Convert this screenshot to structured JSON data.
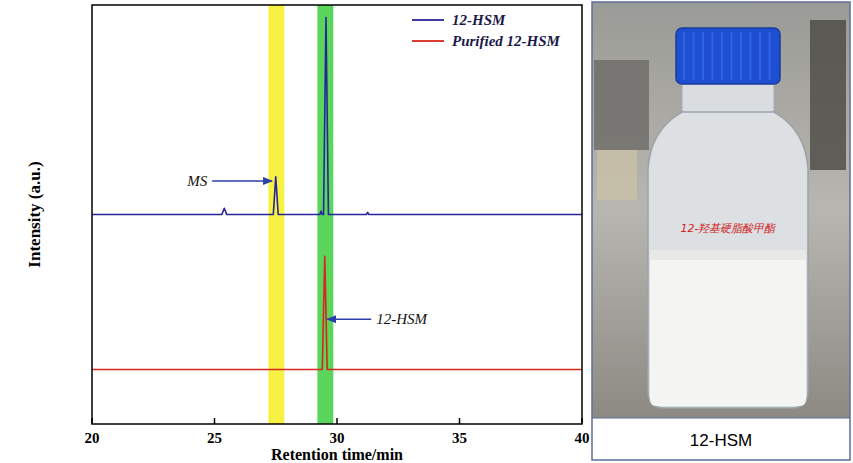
{
  "chart_data": {
    "type": "line",
    "xlabel": "Retention time/min",
    "ylabel": "Intensity (a.u.)",
    "xlim": [
      20,
      40
    ],
    "xticks": [
      20,
      25,
      30,
      35,
      40
    ],
    "ylim": [
      0,
      100
    ],
    "tick_labels": "x",
    "legend": "upper right",
    "series": [
      {
        "name": "12-HSM",
        "color": "#26269a",
        "x": [
          20,
          25.3,
          25.4,
          25.5,
          27.4,
          27.5,
          27.6,
          29.3,
          29.35,
          29.4,
          29.45,
          29.55,
          29.65,
          31.2,
          31.25,
          31.3,
          40
        ],
        "values": [
          50,
          50,
          51.5,
          50,
          50,
          59,
          50,
          50,
          50.8,
          50,
          50,
          97,
          50,
          50,
          50.5,
          50,
          50
        ]
      },
      {
        "name": "Purified 12-HSM",
        "color": "#d8261c",
        "x": [
          20,
          29.4,
          29.5,
          29.6,
          40
        ],
        "values": [
          13,
          13,
          40,
          13,
          13
        ]
      }
    ],
    "highlights": [
      {
        "xmin": 27.2,
        "xmax": 27.85,
        "color": "#f5ee22"
      },
      {
        "xmin": 29.2,
        "xmax": 29.85,
        "color": "#3fce3f"
      }
    ],
    "annotations": [
      {
        "text": "MS",
        "x": 24.7,
        "y": 58,
        "arrow_to": [
          27.35,
          58
        ]
      },
      {
        "text": "12-HSM",
        "x": 31.6,
        "y": 25,
        "arrow_to": [
          29.6,
          25
        ]
      }
    ]
  },
  "photo": {
    "caption": "12-HSM",
    "bottle_label": "12-羟基硬脂酸甲酯"
  }
}
